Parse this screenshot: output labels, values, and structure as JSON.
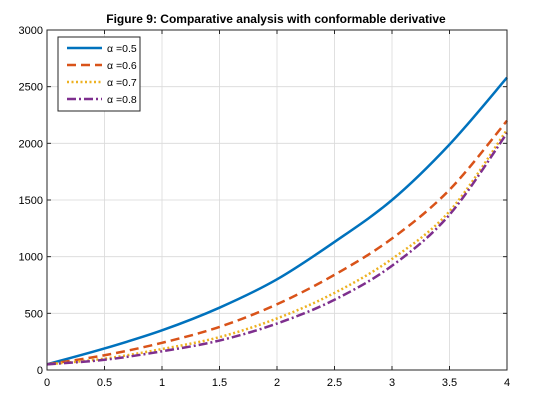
{
  "chart_data": {
    "type": "line",
    "title": "Figure 9: Comparative analysis with conformable derivative",
    "xlabel": "",
    "ylabel": "",
    "xlim": [
      0,
      4
    ],
    "ylim": [
      0,
      3000
    ],
    "xticks": [
      "0",
      "0.5",
      "1",
      "1.5",
      "2",
      "2.5",
      "3",
      "3.5",
      "4"
    ],
    "yticks": [
      "0",
      "500",
      "1000",
      "1500",
      "2000",
      "2500",
      "3000"
    ],
    "grid": true,
    "legend_position": "top-left",
    "x": [
      0,
      0.5,
      1,
      1.5,
      2,
      2.5,
      3,
      3.5,
      4
    ],
    "series": [
      {
        "name": "α =0.5",
        "color": "#0072BD",
        "style": "solid",
        "values": [
          50,
          190,
          350,
          550,
          800,
          1130,
          1500,
          1990,
          2580
        ]
      },
      {
        "name": "α =0.6",
        "color": "#D95319",
        "style": "dashed",
        "values": [
          50,
          130,
          240,
          380,
          580,
          840,
          1160,
          1590,
          2200
        ]
      },
      {
        "name": "α =0.7",
        "color": "#EDB120",
        "style": "dotted",
        "values": [
          50,
          100,
          185,
          290,
          455,
          680,
          980,
          1400,
          2120
        ]
      },
      {
        "name": "α =0.8",
        "color": "#7E2F8E",
        "style": "dashdot",
        "values": [
          50,
          90,
          165,
          260,
          410,
          620,
          920,
          1370,
          2090
        ]
      }
    ]
  }
}
